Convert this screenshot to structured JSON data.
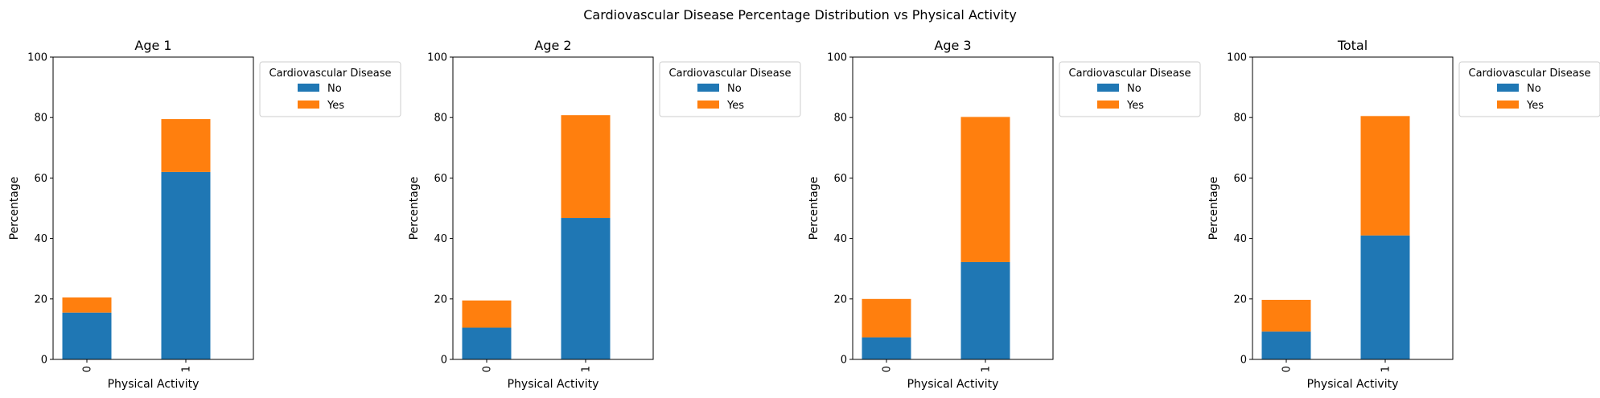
{
  "suptitle": "Cardiovascular Disease Percentage Distribution vs Physical Activity",
  "legend_title": "Cardiovascular Disease",
  "colors": {
    "No": "#1f77b4",
    "Yes": "#ff7f0e"
  },
  "chart_data": [
    {
      "type": "bar",
      "stacked": true,
      "title": "Age 1",
      "xlabel": "Physical Activity",
      "ylabel": "Percentage",
      "categories": [
        "0",
        "1"
      ],
      "ylim": [
        0,
        100
      ],
      "yticks": [
        "0",
        "20",
        "40",
        "60",
        "80",
        "100"
      ],
      "series": [
        {
          "name": "No",
          "values": [
            15.5,
            62.0
          ]
        },
        {
          "name": "Yes",
          "values": [
            5.0,
            17.5
          ]
        }
      ],
      "legend": {
        "position": "outside upper right",
        "entries": [
          "No",
          "Yes"
        ]
      }
    },
    {
      "type": "bar",
      "stacked": true,
      "title": "Age 2",
      "xlabel": "Physical Activity",
      "ylabel": "Percentage",
      "categories": [
        "0",
        "1"
      ],
      "ylim": [
        0,
        100
      ],
      "yticks": [
        "0",
        "20",
        "40",
        "60",
        "80",
        "100"
      ],
      "series": [
        {
          "name": "No",
          "values": [
            10.5,
            46.8
          ]
        },
        {
          "name": "Yes",
          "values": [
            9.0,
            34.0
          ]
        }
      ],
      "legend": {
        "position": "outside upper right",
        "entries": [
          "No",
          "Yes"
        ]
      }
    },
    {
      "type": "bar",
      "stacked": true,
      "title": "Age 3",
      "xlabel": "Physical Activity",
      "ylabel": "Percentage",
      "categories": [
        "0",
        "1"
      ],
      "ylim": [
        0,
        100
      ],
      "yticks": [
        "0",
        "20",
        "40",
        "60",
        "80",
        "100"
      ],
      "series": [
        {
          "name": "No",
          "values": [
            7.3,
            32.2
          ]
        },
        {
          "name": "Yes",
          "values": [
            12.7,
            48.0
          ]
        }
      ],
      "legend": {
        "position": "outside upper right",
        "entries": [
          "No",
          "Yes"
        ]
      }
    },
    {
      "type": "bar",
      "stacked": true,
      "title": "Total",
      "xlabel": "Physical Activity",
      "ylabel": "Percentage",
      "categories": [
        "0",
        "1"
      ],
      "ylim": [
        0,
        100
      ],
      "yticks": [
        "0",
        "20",
        "40",
        "60",
        "80",
        "100"
      ],
      "series": [
        {
          "name": "No",
          "values": [
            9.2,
            41.0
          ]
        },
        {
          "name": "Yes",
          "values": [
            10.5,
            39.5
          ]
        }
      ],
      "legend": {
        "position": "outside upper right",
        "entries": [
          "No",
          "Yes"
        ]
      }
    }
  ]
}
